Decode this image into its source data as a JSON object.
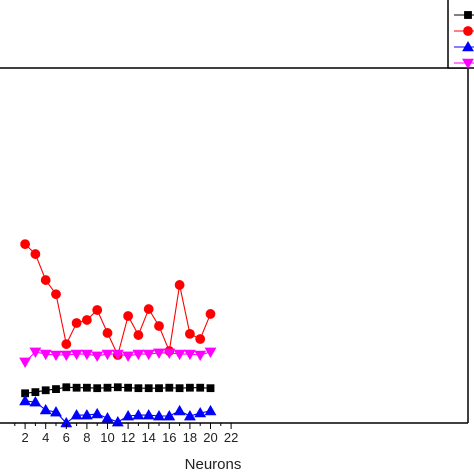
{
  "chart_data": {
    "type": "line",
    "title": "",
    "xlabel": "Neurons",
    "ylabel": "",
    "xlim": [
      0,
      22
    ],
    "x_ticks": [
      2,
      4,
      6,
      8,
      10,
      12,
      14,
      16,
      18,
      20,
      22
    ],
    "x_tick_labels": [
      "2",
      "4",
      "6",
      "8",
      "10",
      "12",
      "14",
      "16",
      "18",
      "20",
      "22"
    ],
    "ylim": [
      0,
      100
    ],
    "grid": false,
    "legend": {
      "placement": "top-right",
      "show_names": false
    },
    "x": [
      2,
      3,
      4,
      5,
      6,
      7,
      8,
      9,
      10,
      11,
      12,
      13,
      14,
      15,
      16,
      17,
      18,
      19,
      20
    ],
    "series": [
      {
        "marker": "square",
        "color": "#000000",
        "values": [
          21.0,
          21.5,
          22.3,
          22.8,
          23.6,
          23.4,
          23.4,
          23.2,
          23.4,
          23.6,
          23.4,
          23.2,
          23.2,
          23.2,
          23.4,
          23.2,
          23.4,
          23.4,
          23.2
        ]
      },
      {
        "marker": "circle",
        "color": "#ff0000",
        "values": [
          85.3,
          81.0,
          69.8,
          63.7,
          42.2,
          51.3,
          52.6,
          56.9,
          47.0,
          37.5,
          54.3,
          46.1,
          57.3,
          50.0,
          39.2,
          67.7,
          46.6,
          44.4,
          55.2
        ]
      },
      {
        "marker": "triangle-up",
        "color": "#0000ff",
        "values": [
          17.7,
          17.2,
          13.8,
          12.9,
          8.2,
          11.6,
          11.6,
          12.1,
          10.3,
          8.6,
          11.2,
          11.6,
          11.6,
          11.2,
          11.2,
          13.4,
          11.2,
          12.5,
          13.4
        ]
      },
      {
        "marker": "triangle-down",
        "color": "#ff00ff",
        "values": [
          34.5,
          38.8,
          37.9,
          37.5,
          37.5,
          37.9,
          37.9,
          37.1,
          37.9,
          37.9,
          37.1,
          37.9,
          37.9,
          38.4,
          38.4,
          37.9,
          37.9,
          37.5,
          38.8
        ]
      }
    ]
  }
}
